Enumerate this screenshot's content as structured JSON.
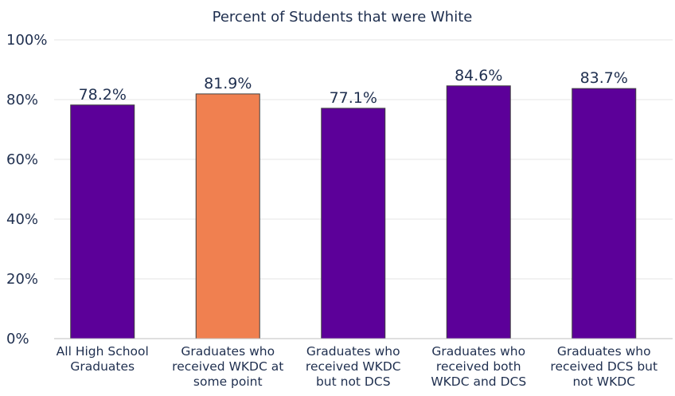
{
  "chart_data": {
    "type": "bar",
    "title": "Percent of Students that were White",
    "xlabel": "",
    "ylabel": "",
    "ylim": [
      0,
      100
    ],
    "y_ticks": [
      "0%",
      "20%",
      "40%",
      "60%",
      "80%",
      "100%"
    ],
    "grid": true,
    "categories": [
      [
        "All High School",
        "Graduates"
      ],
      [
        "Graduates who",
        "received WKDC at",
        "some point"
      ],
      [
        "Graduates who",
        "received WKDC",
        "but not DCS"
      ],
      [
        "Graduates who",
        "received both",
        "WKDC and DCS"
      ],
      [
        "Graduates who",
        "received DCS but",
        "not WKDC"
      ]
    ],
    "values": [
      78.2,
      81.9,
      77.1,
      84.6,
      83.7
    ],
    "data_labels": [
      "78.2%",
      "81.9%",
      "77.1%",
      "84.6%",
      "83.7%"
    ],
    "colors": [
      "#5c0099",
      "#f08050",
      "#5c0099",
      "#5c0099",
      "#5c0099"
    ],
    "highlight_color": "#f08050",
    "bar_color": "#5c0099"
  }
}
